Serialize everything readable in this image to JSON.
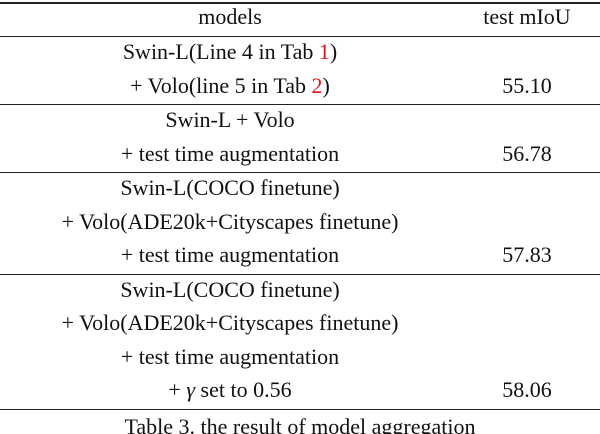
{
  "table": {
    "header": [
      "models",
      "test mIoU"
    ],
    "rows": [
      {
        "models": [
          [
            {
              "text": "Swin-L(Line 4 in Tab "
            },
            {
              "text": "1",
              "style": "ref"
            },
            {
              "text": ")"
            }
          ],
          [
            {
              "text": "+ Volo(line 5 in Tab "
            },
            {
              "text": "2",
              "style": "ref"
            },
            {
              "text": ")"
            }
          ]
        ],
        "miou": "55.10"
      },
      {
        "models": [
          [
            {
              "text": "Swin-L + Volo"
            }
          ],
          [
            {
              "text": "+ test time augmentation"
            }
          ]
        ],
        "miou": "56.78"
      },
      {
        "models": [
          [
            {
              "text": "Swin-L(COCO finetune)"
            }
          ],
          [
            {
              "text": "+ Volo(ADE20k+Cityscapes finetune)"
            }
          ],
          [
            {
              "text": "+ test time augmentation"
            }
          ]
        ],
        "miou": "57.83"
      },
      {
        "models": [
          [
            {
              "text": "Swin-L(COCO finetune)"
            }
          ],
          [
            {
              "text": "+ Volo(ADE20k+Cityscapes finetune)"
            }
          ],
          [
            {
              "text": "+ test time augmentation"
            }
          ],
          [
            {
              "text": "+ "
            },
            {
              "text": "γ",
              "style": "math"
            },
            {
              "text": " set to 0.56"
            }
          ]
        ],
        "miou": "58.06"
      }
    ],
    "caption": "Table 3. the result of model aggregation"
  }
}
